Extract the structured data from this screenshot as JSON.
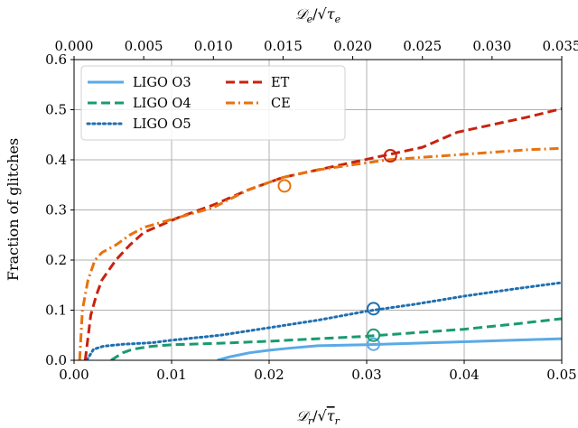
{
  "chart_data": {
    "type": "line",
    "xlabel": "𝒟r/√τr",
    "xlabel_base": "𝒟",
    "xlabel_sub": "r",
    "xlabel_tau": "τ",
    "x2label": "𝒟e/√τe",
    "x2label_base": "𝒟",
    "x2label_sub": "e",
    "x2label_tau": "τ",
    "ylabel": "Fraction of glitches",
    "xlim": [
      0.0,
      0.05
    ],
    "x2lim": [
      0.0,
      0.035
    ],
    "ylim": [
      0.0,
      0.6
    ],
    "xticks": [
      "0.00",
      "0.01",
      "0.02",
      "0.03",
      "0.04",
      "0.05"
    ],
    "xtick_values": [
      0.0,
      0.01,
      0.02,
      0.03,
      0.04,
      0.05
    ],
    "x2ticks": [
      "0.000",
      "0.005",
      "0.010",
      "0.015",
      "0.020",
      "0.025",
      "0.030",
      "0.035"
    ],
    "x2tick_values": [
      0.0,
      0.005,
      0.01,
      0.015,
      0.02,
      0.025,
      0.03,
      0.035
    ],
    "yticks": [
      "0.0",
      "0.1",
      "0.2",
      "0.3",
      "0.4",
      "0.5",
      "0.6"
    ],
    "ytick_values": [
      0.0,
      0.1,
      0.2,
      0.3,
      0.4,
      0.5,
      0.6
    ],
    "grid": true,
    "legend_placement": "top-left",
    "series": [
      {
        "name": "LIGO O3",
        "axis": "bottom",
        "color": "#5aaae6",
        "style": "solid",
        "x": [
          0.0147,
          0.016,
          0.018,
          0.02,
          0.022,
          0.025,
          0.03,
          0.035,
          0.04,
          0.045,
          0.05
        ],
        "y": [
          0.0,
          0.007,
          0.015,
          0.02,
          0.024,
          0.029,
          0.031,
          0.034,
          0.037,
          0.04,
          0.043
        ],
        "marker": {
          "x": 0.0307,
          "y": 0.032
        }
      },
      {
        "name": "LIGO O4",
        "axis": "bottom",
        "color": "#1a9a70",
        "style": "dashed",
        "x": [
          0.0038,
          0.005,
          0.006,
          0.008,
          0.01,
          0.015,
          0.02,
          0.025,
          0.03,
          0.035,
          0.04,
          0.045,
          0.05
        ],
        "y": [
          0.0,
          0.015,
          0.022,
          0.028,
          0.031,
          0.034,
          0.038,
          0.043,
          0.048,
          0.055,
          0.062,
          0.072,
          0.083
        ],
        "marker": {
          "x": 0.0307,
          "y": 0.05
        }
      },
      {
        "name": "LIGO O5",
        "axis": "bottom",
        "color": "#1f6fb0",
        "style": "dotted",
        "x": [
          0.0013,
          0.002,
          0.003,
          0.005,
          0.008,
          0.01,
          0.015,
          0.02,
          0.025,
          0.03,
          0.035,
          0.04,
          0.045,
          0.05
        ],
        "y": [
          0.0,
          0.022,
          0.028,
          0.032,
          0.035,
          0.04,
          0.05,
          0.065,
          0.08,
          0.098,
          0.112,
          0.128,
          0.142,
          0.155
        ],
        "marker": {
          "x": 0.0307,
          "y": 0.103
        }
      },
      {
        "name": "ET",
        "axis": "top",
        "color": "#c8220e",
        "style": "dashed",
        "x": [
          0.0008,
          0.0012,
          0.0016,
          0.002,
          0.003,
          0.004,
          0.005,
          0.0075,
          0.01,
          0.0125,
          0.015,
          0.0175,
          0.02,
          0.0225,
          0.025,
          0.0275,
          0.03,
          0.0325,
          0.035
        ],
        "y": [
          0.0,
          0.09,
          0.13,
          0.16,
          0.2,
          0.23,
          0.255,
          0.285,
          0.31,
          0.34,
          0.365,
          0.38,
          0.395,
          0.41,
          0.425,
          0.455,
          0.47,
          0.485,
          0.502
        ],
        "marker": {
          "x": 0.0227,
          "y": 0.408
        }
      },
      {
        "name": "CE",
        "axis": "top",
        "color": "#e8720e",
        "style": "dashdot",
        "x": [
          0.0004,
          0.0006,
          0.001,
          0.0015,
          0.002,
          0.003,
          0.004,
          0.005,
          0.0075,
          0.01,
          0.0125,
          0.015,
          0.0175,
          0.02,
          0.0225,
          0.025,
          0.0275,
          0.03,
          0.0325,
          0.035
        ],
        "y": [
          0.0,
          0.1,
          0.16,
          0.2,
          0.215,
          0.23,
          0.25,
          0.265,
          0.285,
          0.305,
          0.34,
          0.365,
          0.38,
          0.39,
          0.4,
          0.405,
          0.41,
          0.415,
          0.42,
          0.423
        ],
        "marker": {
          "x": 0.0151,
          "y": 0.348
        }
      }
    ]
  }
}
